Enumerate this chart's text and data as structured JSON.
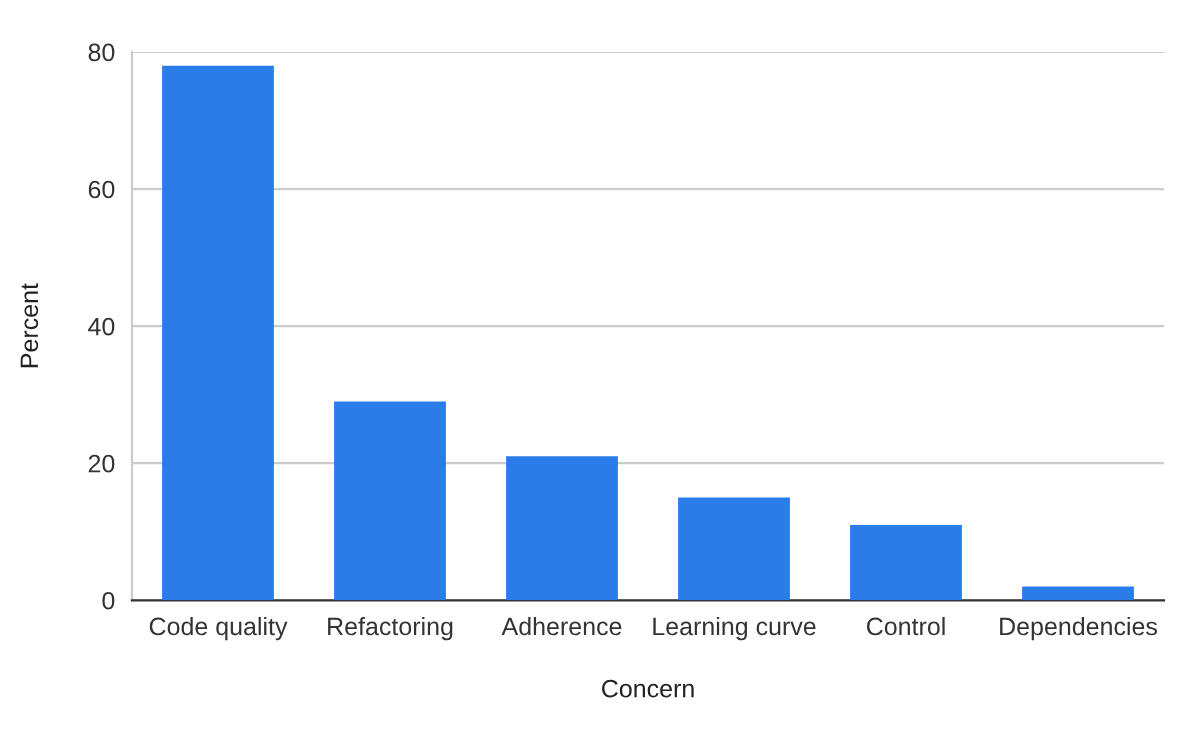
{
  "chart_data": {
    "type": "bar",
    "xlabel": "Concern",
    "ylabel": "Percent",
    "categories": [
      "Code quality",
      "Refactoring",
      "Adherence",
      "Learning curve",
      "Control",
      "Dependencies"
    ],
    "values": [
      78,
      29,
      21,
      15,
      11,
      2
    ],
    "color": "#2a7de8",
    "ylim": [
      0,
      80
    ],
    "yticks": [
      0,
      20,
      40,
      60,
      80
    ],
    "grid": "y",
    "legend": false
  }
}
